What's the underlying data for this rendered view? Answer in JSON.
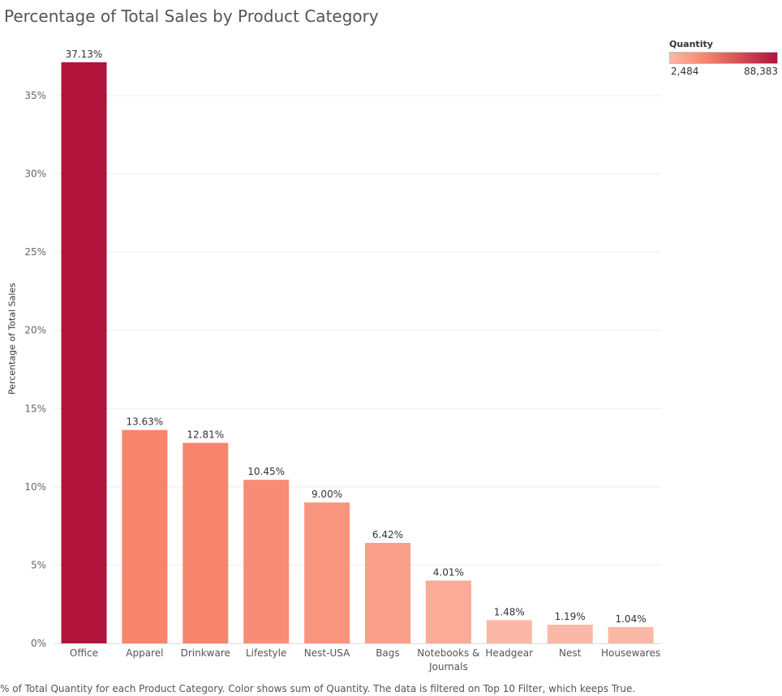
{
  "colors": {
    "low": "#fcb8a6",
    "mid": "#f8846c",
    "high": "#b0143b"
  },
  "chart_data": {
    "type": "bar",
    "title": "Percentage of Total Sales by Product Category",
    "xlabel": "",
    "ylabel": "Percentage of Total Sales",
    "ylim": [
      0,
      38
    ],
    "yticks": [
      0,
      5,
      10,
      15,
      20,
      25,
      30,
      35
    ],
    "ytick_labels": [
      "0%",
      "5%",
      "10%",
      "15%",
      "20%",
      "25%",
      "30%",
      "35%"
    ],
    "grid": true,
    "categories": [
      "Office",
      "Apparel",
      "Drinkware",
      "Lifestyle",
      "Nest-USA",
      "Bags",
      "Notebooks & Journals",
      "Headgear",
      "Nest",
      "Housewares"
    ],
    "category_lines": [
      [
        "Office"
      ],
      [
        "Apparel"
      ],
      [
        "Drinkware"
      ],
      [
        "Lifestyle"
      ],
      [
        "Nest-USA"
      ],
      [
        "Bags"
      ],
      [
        "Notebooks &",
        "Journals"
      ],
      [
        "Headgear"
      ],
      [
        "Nest"
      ],
      [
        "Housewares"
      ]
    ],
    "values": [
      37.13,
      13.63,
      12.81,
      10.45,
      9.0,
      6.42,
      4.01,
      1.48,
      1.19,
      1.04
    ],
    "data_labels": [
      "37.13%",
      "13.63%",
      "12.81%",
      "10.45%",
      "9.00%",
      "6.42%",
      "4.01%",
      "1.48%",
      "1.19%",
      "1.04%"
    ],
    "color_value_rank": [
      1.0,
      0.33,
      0.33,
      0.28,
      0.22,
      0.16,
      0.08,
      0.0,
      0.0,
      0.0
    ],
    "legend": {
      "title": "Quantity",
      "min_label": "2,484",
      "max_label": "88,383",
      "placement": "top-right"
    }
  },
  "caption": "% of Total Quantity for each Product Category.  Color shows sum of Quantity. The data is filtered on Top 10 Filter, which keeps True."
}
